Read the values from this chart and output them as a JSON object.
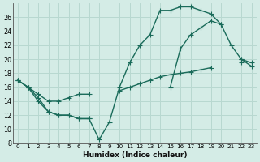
{
  "xlabel": "Humidex (Indice chaleur)",
  "bg_color": "#d4ece6",
  "grid_color": "#b8d8d0",
  "line_color": "#1a6b5a",
  "markersize": 2.5,
  "linewidth": 1.0,
  "xlim": [
    -0.5,
    23.5
  ],
  "ylim": [
    8,
    28
  ],
  "xticks": [
    0,
    1,
    2,
    3,
    4,
    5,
    6,
    7,
    8,
    9,
    10,
    11,
    12,
    13,
    14,
    15,
    16,
    17,
    18,
    19,
    20,
    21,
    22,
    23
  ],
  "yticks": [
    8,
    10,
    12,
    14,
    16,
    18,
    20,
    22,
    24,
    26
  ],
  "line1_x": [
    0,
    1,
    2,
    3,
    4,
    5,
    6,
    7,
    8,
    9,
    10,
    11,
    12,
    13,
    14,
    15,
    16,
    17,
    18,
    19,
    20,
    21,
    22,
    23
  ],
  "line1_y": [
    17,
    16,
    14,
    12.5,
    12,
    12,
    11.5,
    11.5,
    8.5,
    11,
    16,
    19.5,
    22,
    23.5,
    27,
    27,
    27.5,
    27.5,
    27,
    26.5,
    25,
    22,
    20,
    19.5
  ],
  "line2_x": [
    0,
    1,
    2,
    3,
    4,
    5,
    6,
    7,
    8,
    9,
    10,
    11,
    12,
    13,
    14,
    15,
    16,
    17,
    18,
    19,
    20,
    21,
    22,
    23
  ],
  "line2_y": [
    17,
    16,
    14.5,
    12.5,
    12,
    12,
    11.5,
    11.5,
    null,
    null,
    null,
    null,
    null,
    null,
    null,
    16,
    21.5,
    23.5,
    24.5,
    25.5,
    25,
    null,
    20,
    19
  ],
  "line3_x": [
    0,
    1,
    2,
    3,
    4,
    5,
    6,
    7,
    8,
    9,
    10,
    11,
    12,
    13,
    14,
    15,
    16,
    17,
    18,
    19,
    20,
    21,
    22,
    23
  ],
  "line3_y": [
    17,
    16,
    15,
    14,
    14,
    14.5,
    15,
    15,
    null,
    null,
    15.5,
    16,
    16.5,
    17,
    17.5,
    17.8,
    18,
    18.2,
    18.5,
    18.8,
    null,
    null,
    19.5,
    null
  ]
}
